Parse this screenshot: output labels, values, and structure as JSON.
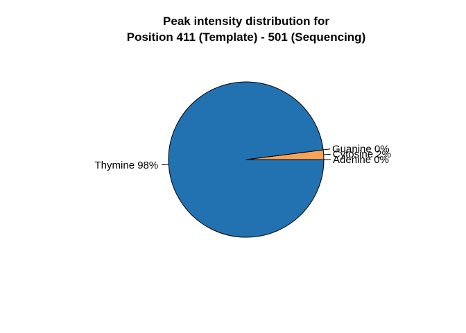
{
  "chart_data": {
    "type": "pie",
    "title_line1": "Peak intensity distribution for",
    "title_line2": "Position 411 (Template) - 501 (Sequencing)",
    "slices": [
      {
        "label": "Adenine 0%",
        "value": 0,
        "color": "#ff7f0e"
      },
      {
        "label": "Cytosine 2%",
        "value": 2,
        "color": "#f8a35a"
      },
      {
        "label": "Guanine 0%",
        "value": 0,
        "color": "#2ca02c"
      },
      {
        "label": "Thymine 98%",
        "value": 98,
        "color": "#2271b1"
      }
    ],
    "start_angle_deg": 0,
    "direction": "counterclockwise",
    "outline_color": "#000000"
  }
}
